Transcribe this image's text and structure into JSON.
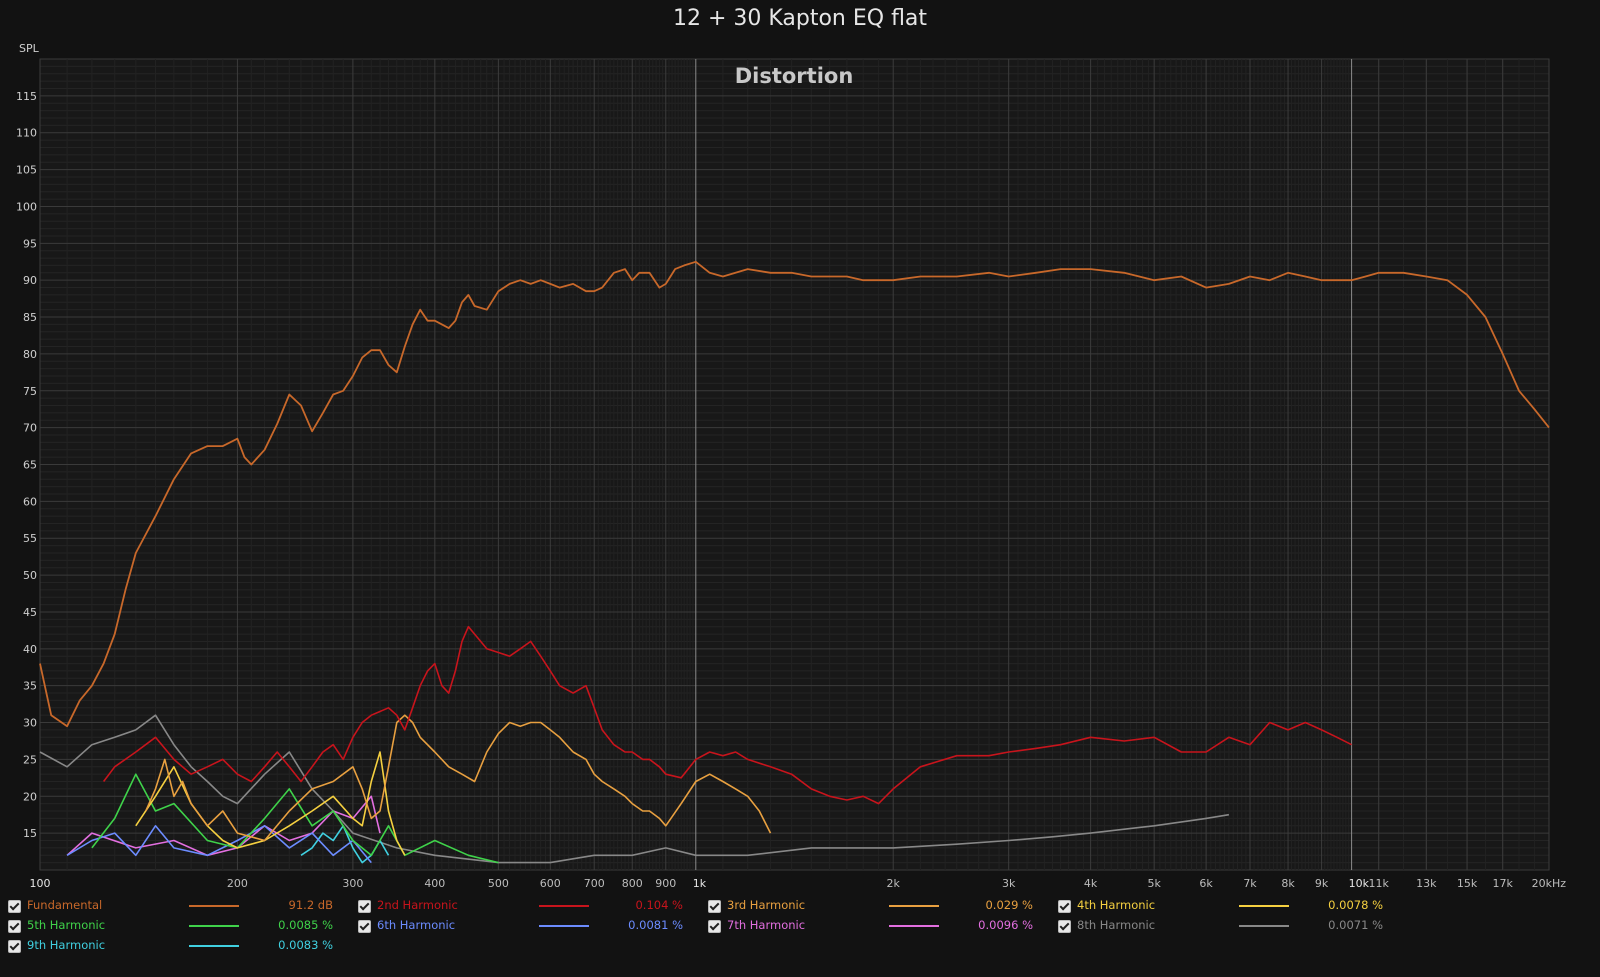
{
  "title": "12 + 30 Kapton EQ flat",
  "chart_data": {
    "type": "line",
    "title": "Distortion",
    "ylabel": "SPL",
    "xscale": "log",
    "xlim": [
      100,
      20000
    ],
    "ylim": [
      10,
      120
    ],
    "yticks": [
      115,
      110,
      105,
      100,
      95,
      90,
      85,
      80,
      75,
      70,
      65,
      60,
      55,
      50,
      45,
      40,
      35,
      30,
      25,
      20,
      15
    ],
    "xticks": [
      {
        "v": 100,
        "label": "100"
      },
      {
        "v": 200,
        "label": "200"
      },
      {
        "v": 300,
        "label": "300"
      },
      {
        "v": 400,
        "label": "400"
      },
      {
        "v": 500,
        "label": "500"
      },
      {
        "v": 600,
        "label": "600"
      },
      {
        "v": 700,
        "label": "700"
      },
      {
        "v": 800,
        "label": "800"
      },
      {
        "v": 900,
        "label": "900"
      },
      {
        "v": 1000,
        "label": "1k"
      },
      {
        "v": 2000,
        "label": "2k"
      },
      {
        "v": 3000,
        "label": "3k"
      },
      {
        "v": 4000,
        "label": "4k"
      },
      {
        "v": 5000,
        "label": "5k"
      },
      {
        "v": 6000,
        "label": "6k"
      },
      {
        "v": 7000,
        "label": "7k"
      },
      {
        "v": 8000,
        "label": "8k"
      },
      {
        "v": 9000,
        "label": "9k"
      },
      {
        "v": 10000,
        "label": "10k"
      },
      {
        "v": 11000,
        "label": "11k"
      },
      {
        "v": 13000,
        "label": "13k"
      },
      {
        "v": 15000,
        "label": "15k"
      },
      {
        "v": 17000,
        "label": "17k"
      },
      {
        "v": 20000,
        "label": "20kHz"
      }
    ],
    "grid": true,
    "legend_position": "bottom",
    "series": [
      {
        "name": "Fundamental",
        "color": "#c8682a",
        "x": [
          100,
          104,
          110,
          115,
          120,
          125,
          130,
          135,
          140,
          150,
          160,
          170,
          180,
          190,
          200,
          205,
          210,
          220,
          230,
          240,
          250,
          260,
          270,
          280,
          290,
          300,
          310,
          320,
          330,
          340,
          350,
          360,
          370,
          380,
          390,
          400,
          410,
          420,
          430,
          440,
          450,
          460,
          480,
          500,
          520,
          540,
          560,
          580,
          600,
          620,
          650,
          680,
          700,
          720,
          750,
          780,
          800,
          820,
          850,
          880,
          900,
          930,
          960,
          1000,
          1050,
          1100,
          1200,
          1300,
          1400,
          1500,
          1600,
          1700,
          1800,
          1900,
          2000,
          2200,
          2500,
          2800,
          3000,
          3300,
          3600,
          4000,
          4500,
          5000,
          5500,
          6000,
          6500,
          7000,
          7500,
          8000,
          8500,
          9000,
          9500,
          10000,
          10500,
          11000,
          12000,
          13000,
          14000,
          15000,
          16000,
          17000,
          18000,
          19000,
          20000
        ],
        "y": [
          38,
          31,
          29.5,
          33,
          35,
          38,
          42,
          48,
          53,
          58,
          63,
          66.5,
          67.5,
          67.5,
          68.5,
          66,
          65,
          67,
          70.5,
          74.5,
          73,
          69.5,
          72,
          74.5,
          75,
          77,
          79.5,
          80.5,
          80.5,
          78.5,
          77.5,
          81,
          84,
          86,
          84.5,
          84.5,
          84,
          83.5,
          84.5,
          87,
          88,
          86.5,
          86,
          88.5,
          89.5,
          90,
          89.5,
          90,
          89.5,
          89,
          89.5,
          88.5,
          88.5,
          89,
          91,
          91.5,
          90,
          91,
          91,
          89,
          89.5,
          91.5,
          92,
          92.5,
          91,
          90.5,
          91.5,
          91,
          91,
          90.5,
          90.5,
          90.5,
          90,
          90,
          90,
          90.5,
          90.5,
          91,
          90.5,
          91,
          91.5,
          91.5,
          91,
          90,
          90.5,
          89,
          89.5,
          90.5,
          90,
          91,
          90.5,
          90,
          90,
          90,
          90.5,
          91,
          91,
          90.5,
          90,
          88,
          85,
          80,
          75,
          72.5,
          70
        ]
      },
      {
        "name": "2nd Harmonic",
        "color": "#c8141c",
        "x": [
          125,
          130,
          140,
          150,
          160,
          170,
          180,
          190,
          200,
          210,
          220,
          230,
          240,
          250,
          260,
          270,
          280,
          290,
          300,
          310,
          320,
          330,
          340,
          350,
          360,
          370,
          380,
          390,
          400,
          410,
          420,
          430,
          440,
          450,
          460,
          480,
          500,
          520,
          540,
          560,
          580,
          600,
          620,
          650,
          680,
          700,
          720,
          750,
          780,
          800,
          830,
          850,
          880,
          900,
          950,
          1000,
          1050,
          1100,
          1150,
          1200,
          1300,
          1400,
          1500,
          1600,
          1700,
          1800,
          1900,
          2000,
          2200,
          2500,
          2800,
          3000,
          3300,
          3600,
          4000,
          4500,
          5000,
          5500,
          6000,
          6500,
          7000,
          7500,
          8000,
          8500,
          9000,
          9500,
          10000
        ],
        "y": [
          22,
          24,
          26,
          28,
          25,
          23,
          24,
          25,
          23,
          22,
          24,
          26,
          24,
          22,
          24,
          26,
          27,
          25,
          28,
          30,
          31,
          31.5,
          32,
          31,
          29,
          32,
          35,
          37,
          38,
          35,
          34,
          37,
          41,
          43,
          42,
          40,
          39.5,
          39,
          40,
          41,
          39,
          37,
          35,
          34,
          35,
          32,
          29,
          27,
          26,
          26,
          25,
          25,
          24,
          23,
          22.5,
          25,
          26,
          25.5,
          26,
          25,
          24,
          23,
          21,
          20,
          19.5,
          20,
          19,
          21,
          24,
          25.5,
          25.5,
          26,
          26.5,
          27,
          28,
          27.5,
          28,
          26,
          26,
          28,
          27,
          30,
          29,
          30,
          29,
          28,
          27
        ]
      },
      {
        "name": "3rd Harmonic",
        "color": "#e8a040",
        "x": [
          145,
          150,
          155,
          160,
          165,
          170,
          180,
          190,
          200,
          220,
          240,
          260,
          280,
          300,
          310,
          320,
          330,
          340,
          350,
          360,
          370,
          380,
          400,
          420,
          440,
          460,
          480,
          500,
          520,
          540,
          560,
          580,
          600,
          620,
          650,
          680,
          700,
          720,
          750,
          780,
          800,
          830,
          850,
          880,
          900,
          950,
          1000,
          1050,
          1100,
          1150,
          1200,
          1250,
          1300
        ],
        "y": [
          18,
          21,
          25,
          20,
          22,
          19,
          16,
          18,
          15,
          14,
          18,
          21,
          22,
          24,
          21,
          17,
          18,
          24,
          30,
          31,
          30,
          28,
          26,
          24,
          23,
          22,
          26,
          28.5,
          30,
          29.5,
          30,
          30,
          29,
          28,
          26,
          25,
          23,
          22,
          21,
          20,
          19,
          18,
          18,
          17,
          16,
          19,
          22,
          23,
          22,
          21,
          20,
          18,
          15
        ]
      },
      {
        "name": "4th Harmonic",
        "color": "#f5d040",
        "x": [
          140,
          150,
          160,
          170,
          180,
          190,
          200,
          220,
          240,
          260,
          280,
          300,
          310,
          320,
          330,
          335,
          340,
          350,
          360
        ],
        "y": [
          16,
          20,
          24,
          19,
          16,
          14,
          13,
          14,
          16,
          18,
          20,
          17,
          16,
          22,
          26,
          22,
          18,
          14,
          12
        ]
      },
      {
        "name": "5th Harmonic",
        "color": "#3fd24a",
        "x": [
          120,
          130,
          140,
          150,
          160,
          180,
          200,
          220,
          240,
          260,
          280,
          300,
          320,
          340,
          360,
          400,
          450,
          500
        ],
        "y": [
          13,
          17,
          23,
          18,
          19,
          14,
          13,
          17,
          21,
          16,
          18,
          14,
          12,
          16,
          12,
          14,
          12,
          11
        ]
      },
      {
        "name": "6th Harmonic",
        "color": "#6c8cff",
        "x": [
          110,
          120,
          130,
          140,
          150,
          160,
          180,
          200,
          220,
          240,
          260,
          280,
          300,
          320
        ],
        "y": [
          12,
          14,
          15,
          12,
          16,
          13,
          12,
          14,
          16,
          13,
          15,
          12,
          14,
          11
        ]
      },
      {
        "name": "7th Harmonic",
        "color": "#e36fe0",
        "x": [
          110,
          120,
          140,
          160,
          180,
          200,
          220,
          240,
          260,
          280,
          300,
          320,
          330
        ],
        "y": [
          12,
          15,
          13,
          14,
          12,
          13,
          16,
          14,
          15,
          18,
          17,
          20,
          15
        ]
      },
      {
        "name": "8th Harmonic",
        "color": "#888888",
        "x": [
          100,
          110,
          120,
          130,
          140,
          150,
          160,
          170,
          180,
          190,
          200,
          220,
          240,
          260,
          280,
          300,
          350,
          400,
          500,
          600,
          700,
          800,
          900,
          1000,
          1200,
          1500,
          2000,
          2500,
          3000,
          3500,
          4000,
          5000,
          6000,
          6500
        ],
        "y": [
          26,
          24,
          27,
          28,
          29,
          31,
          27,
          24,
          22,
          20,
          19,
          23,
          26,
          21,
          18,
          15,
          13,
          12,
          11,
          11,
          12,
          12,
          13,
          12,
          12,
          13,
          13,
          13.5,
          14,
          14.5,
          15,
          16,
          17,
          17.5
        ]
      },
      {
        "name": "9th Harmonic",
        "color": "#40d0e0",
        "x": [
          250,
          260,
          270,
          280,
          290,
          300,
          310,
          320,
          330,
          340
        ],
        "y": [
          12,
          13,
          15,
          14,
          16,
          13,
          11,
          12,
          14,
          12
        ]
      }
    ]
  },
  "legend": [
    {
      "name": "Fundamental",
      "value": "91.2 dB",
      "color": "#c8682a"
    },
    {
      "name": "2nd Harmonic",
      "value": "0.104 %",
      "color": "#c8141c"
    },
    {
      "name": "3rd Harmonic",
      "value": "0.029 %",
      "color": "#e8a040"
    },
    {
      "name": "4th Harmonic",
      "value": "0.0078 %",
      "color": "#f5d040"
    },
    {
      "name": "5th Harmonic",
      "value": "0.0085 %",
      "color": "#3fd24a"
    },
    {
      "name": "6th Harmonic",
      "value": "0.0081 %",
      "color": "#6c8cff"
    },
    {
      "name": "7th Harmonic",
      "value": "0.0096 %",
      "color": "#e36fe0"
    },
    {
      "name": "8th Harmonic",
      "value": "0.0071 %",
      "color": "#888888"
    },
    {
      "name": "9th Harmonic",
      "value": "0.0083 %",
      "color": "#40d0e0"
    }
  ]
}
